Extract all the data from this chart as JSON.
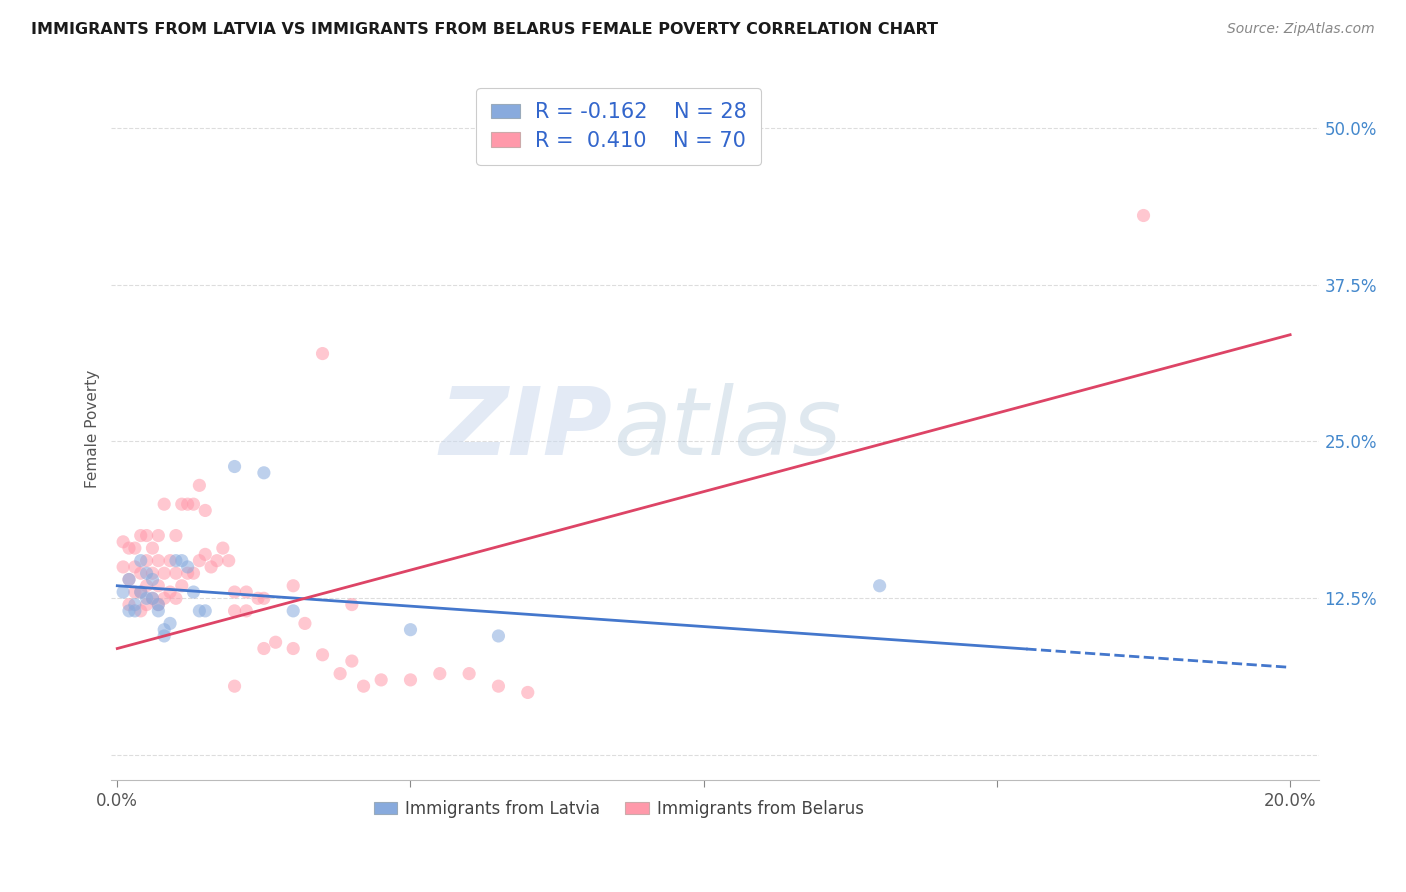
{
  "title": "IMMIGRANTS FROM LATVIA VS IMMIGRANTS FROM BELARUS FEMALE POVERTY CORRELATION CHART",
  "source": "Source: ZipAtlas.com",
  "ylabel": "Female Poverty",
  "xlim": [
    -0.001,
    0.205
  ],
  "ylim": [
    -0.02,
    0.54
  ],
  "xticks": [
    0.0,
    0.05,
    0.1,
    0.15,
    0.2
  ],
  "xticklabels": [
    "0.0%",
    "",
    "",
    "",
    "20.0%"
  ],
  "yticks": [
    0.0,
    0.125,
    0.25,
    0.375,
    0.5
  ],
  "yticklabels": [
    "",
    "12.5%",
    "25.0%",
    "37.5%",
    "50.0%"
  ],
  "grid_color": "#dddddd",
  "background_color": "#ffffff",
  "watermark_zip": "ZIP",
  "watermark_atlas": "atlas",
  "color_latvia": "#88aadd",
  "color_belarus": "#ff99aa",
  "color_latvia_line": "#4477cc",
  "color_belarus_line": "#dd4466",
  "scatter_alpha": 0.55,
  "scatter_size": 90,
  "solid_cutoff": 0.155,
  "latvia_x": [
    0.001,
    0.002,
    0.002,
    0.003,
    0.003,
    0.004,
    0.004,
    0.005,
    0.005,
    0.006,
    0.006,
    0.007,
    0.007,
    0.008,
    0.008,
    0.009,
    0.01,
    0.011,
    0.012,
    0.013,
    0.014,
    0.015,
    0.02,
    0.025,
    0.03,
    0.05,
    0.065,
    0.13
  ],
  "latvia_y": [
    0.13,
    0.115,
    0.14,
    0.115,
    0.12,
    0.13,
    0.155,
    0.125,
    0.145,
    0.125,
    0.14,
    0.115,
    0.12,
    0.1,
    0.095,
    0.105,
    0.155,
    0.155,
    0.15,
    0.13,
    0.115,
    0.115,
    0.23,
    0.225,
    0.115,
    0.1,
    0.095,
    0.135
  ],
  "belarus_x": [
    0.001,
    0.001,
    0.002,
    0.002,
    0.002,
    0.003,
    0.003,
    0.003,
    0.004,
    0.004,
    0.004,
    0.004,
    0.005,
    0.005,
    0.005,
    0.005,
    0.006,
    0.006,
    0.006,
    0.007,
    0.007,
    0.007,
    0.007,
    0.008,
    0.008,
    0.008,
    0.009,
    0.009,
    0.01,
    0.01,
    0.01,
    0.011,
    0.011,
    0.012,
    0.012,
    0.013,
    0.013,
    0.014,
    0.014,
    0.015,
    0.015,
    0.016,
    0.017,
    0.018,
    0.019,
    0.02,
    0.02,
    0.022,
    0.022,
    0.024,
    0.025,
    0.027,
    0.03,
    0.032,
    0.035,
    0.038,
    0.04,
    0.042,
    0.045,
    0.05,
    0.055,
    0.06,
    0.065,
    0.07,
    0.02,
    0.025,
    0.03,
    0.035,
    0.175,
    0.04
  ],
  "belarus_y": [
    0.15,
    0.17,
    0.12,
    0.14,
    0.165,
    0.13,
    0.15,
    0.165,
    0.115,
    0.13,
    0.145,
    0.175,
    0.12,
    0.135,
    0.155,
    0.175,
    0.125,
    0.145,
    0.165,
    0.12,
    0.135,
    0.155,
    0.175,
    0.125,
    0.145,
    0.2,
    0.13,
    0.155,
    0.125,
    0.145,
    0.175,
    0.135,
    0.2,
    0.145,
    0.2,
    0.145,
    0.2,
    0.155,
    0.215,
    0.16,
    0.195,
    0.15,
    0.155,
    0.165,
    0.155,
    0.115,
    0.13,
    0.115,
    0.13,
    0.125,
    0.085,
    0.09,
    0.085,
    0.105,
    0.08,
    0.065,
    0.075,
    0.055,
    0.06,
    0.06,
    0.065,
    0.065,
    0.055,
    0.05,
    0.055,
    0.125,
    0.135,
    0.32,
    0.43,
    0.12
  ],
  "belarus_line_x0": 0.0,
  "belarus_line_x1": 0.2,
  "belarus_line_y0": 0.085,
  "belarus_line_y1": 0.335,
  "latvia_line_x0": 0.0,
  "latvia_line_x1": 0.2,
  "latvia_line_y0": 0.135,
  "latvia_line_y1": 0.07
}
